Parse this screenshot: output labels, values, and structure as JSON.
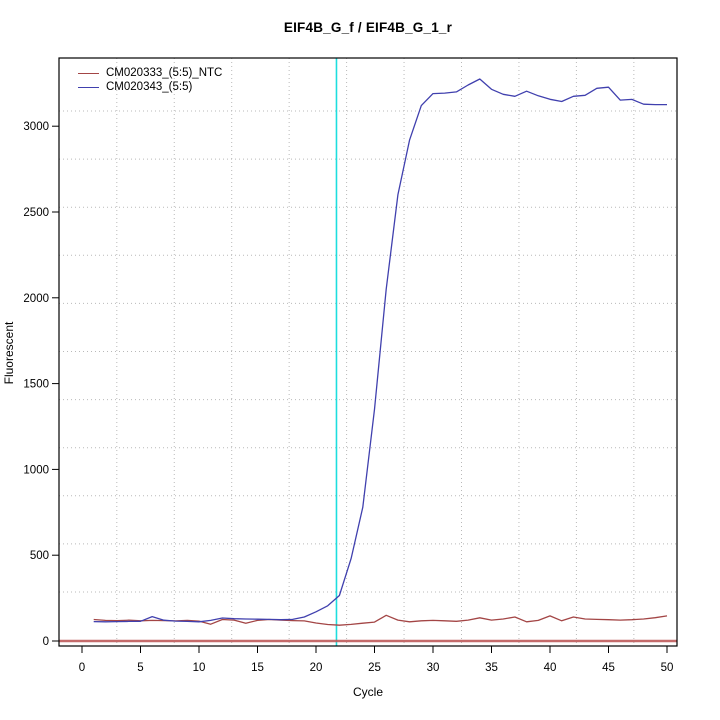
{
  "chart_data": {
    "type": "line",
    "title": "EIF4B_G_f / EIF4B_G_1_r",
    "xlabel": "Cycle",
    "ylabel": "Fluorescent",
    "x_ticks": [
      0,
      5,
      10,
      15,
      20,
      25,
      30,
      35,
      40,
      45,
      50
    ],
    "y_ticks": [
      0,
      500,
      1000,
      1500,
      2000,
      2500,
      3000
    ],
    "xlim": [
      -2,
      52.8
    ],
    "ylim": [
      -30,
      3400
    ],
    "grid": "dotted",
    "legend_position": "top-left",
    "x": [
      1,
      2,
      3,
      4,
      5,
      6,
      7,
      8,
      9,
      10,
      11,
      12,
      13,
      14,
      15,
      16,
      17,
      18,
      19,
      20,
      21,
      22,
      23,
      24,
      25,
      26,
      27,
      28,
      29,
      30,
      31,
      32,
      33,
      34,
      35,
      36,
      37,
      38,
      39,
      40,
      41,
      42,
      43,
      44,
      45,
      46,
      47,
      48,
      49,
      50
    ],
    "series": [
      {
        "name": "CM020333_(5:5)_NTC",
        "color": "#a34545",
        "values": [
          125,
          120,
          119,
          121,
          118,
          120,
          119,
          117,
          120,
          116,
          98,
          125,
          122,
          104,
          120,
          125,
          122,
          119,
          117,
          105,
          96,
          92,
          97,
          104,
          110,
          150,
          122,
          112,
          118,
          120,
          118,
          115,
          122,
          135,
          122,
          128,
          140,
          112,
          120,
          146,
          118,
          140,
          128,
          126,
          124,
          122,
          124,
          128,
          136,
          146
        ]
      },
      {
        "name": "CM020343_(5:5)",
        "color": "#4040ae",
        "values": [
          113,
          112,
          113,
          114,
          115,
          142,
          121,
          116,
          114,
          112,
          120,
          134,
          130,
          128,
          127,
          126,
          124,
          126,
          140,
          170,
          205,
          265,
          480,
          780,
          1350,
          2050,
          2600,
          2920,
          3120,
          3190,
          3193,
          3200,
          3240,
          3275,
          3215,
          3186,
          3174,
          3204,
          3177,
          3157,
          3144,
          3174,
          3180,
          3221,
          3227,
          3152,
          3156,
          3128,
          3126,
          3126
        ]
      }
    ],
    "ct_line": {
      "x": 21.75,
      "color": "#1ddede"
    },
    "baseline_line": {
      "y": 0,
      "color": "#bc5252"
    }
  }
}
